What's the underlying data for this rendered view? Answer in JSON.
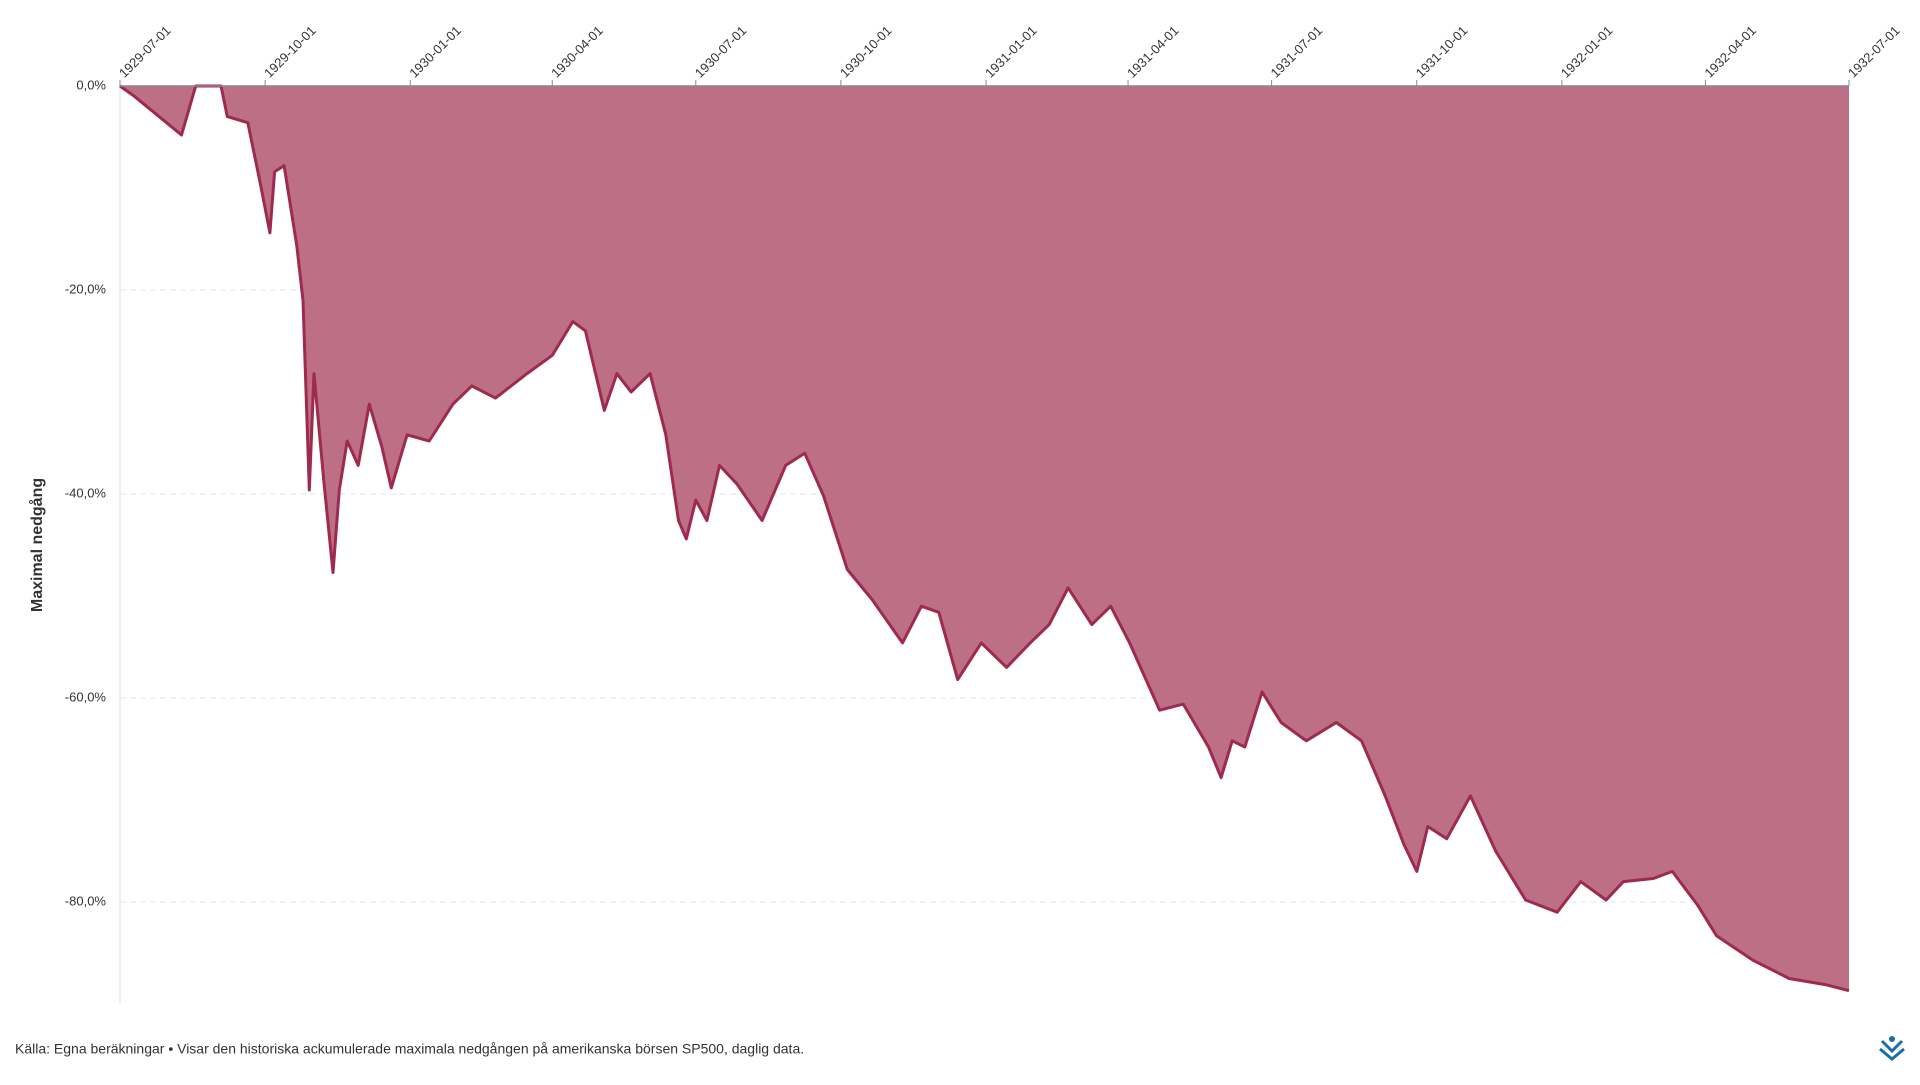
{
  "chart_data": {
    "type": "area",
    "ylabel": "Maximal nedgång",
    "source": "Källa: Egna beräkningar • Visar den historiska ackumulerade maximala nedgången på amerikanska börsen SP500, daglig data.",
    "color": "#bd6f85",
    "line_color": "#9e2a4e",
    "grid": true,
    "xlim": [
      "1929-07-01",
      "1932-07-01"
    ],
    "xticks": [
      "1929-07-01",
      "1929-10-01",
      "1930-01-01",
      "1930-04-01",
      "1930-07-01",
      "1930-10-01",
      "1931-01-01",
      "1931-04-01",
      "1931-07-01",
      "1931-10-01",
      "1932-01-01",
      "1932-04-01",
      "1932-07-01"
    ],
    "ylim": [
      -90,
      0
    ],
    "yticks": [
      {
        "value": 0,
        "label": "0,0%"
      },
      {
        "value": -20,
        "label": "-20,0%"
      },
      {
        "value": -40,
        "label": "-40,0%"
      },
      {
        "value": -60,
        "label": "-60,0%"
      },
      {
        "value": -80,
        "label": "-80,0%"
      }
    ],
    "x": [
      "1929-07-01",
      "1929-07-10",
      "1929-08-09",
      "1929-08-18",
      "1929-09-03",
      "1929-09-07",
      "1929-09-20",
      "1929-09-28",
      "1929-10-04",
      "1929-10-07",
      "1929-10-13",
      "1929-10-21",
      "1929-10-25",
      "1929-10-29",
      "1929-11-01",
      "1929-11-07",
      "1929-11-13",
      "1929-11-17",
      "1929-11-22",
      "1929-11-29",
      "1929-12-06",
      "1929-12-14",
      "1929-12-20",
      "1929-12-30",
      "1930-01-13",
      "1930-01-28",
      "1930-02-09",
      "1930-02-24",
      "1930-03-16",
      "1930-04-01",
      "1930-04-14",
      "1930-04-22",
      "1930-05-04",
      "1930-05-12",
      "1930-05-21",
      "1930-06-02",
      "1930-06-12",
      "1930-06-20",
      "1930-06-25",
      "1930-07-01",
      "1930-07-08",
      "1930-07-16",
      "1930-07-27",
      "1930-08-12",
      "1930-08-27",
      "1930-09-08",
      "1930-09-20",
      "1930-10-05",
      "1930-10-21",
      "1930-11-09",
      "1930-11-21",
      "1930-12-02",
      "1930-12-14",
      "1930-12-29",
      "1931-01-14",
      "1931-01-29",
      "1931-02-10",
      "1931-02-22",
      "1931-03-09",
      "1931-03-21",
      "1931-04-02",
      "1931-04-21",
      "1931-05-06",
      "1931-05-22",
      "1931-05-30",
      "1931-06-06",
      "1931-06-14",
      "1931-06-25",
      "1931-07-07",
      "1931-07-23",
      "1931-08-11",
      "1931-08-27",
      "1931-09-11",
      "1931-09-23",
      "1931-10-01",
      "1931-10-08",
      "1931-10-20",
      "1931-11-04",
      "1931-11-20",
      "1931-12-09",
      "1931-12-29",
      "1932-01-13",
      "1932-01-29",
      "1932-02-09",
      "1932-02-28",
      "1932-03-11",
      "1932-03-27",
      "1932-04-08",
      "1932-05-01",
      "1932-05-24",
      "1932-06-16",
      "1932-07-01"
    ],
    "values": [
      0,
      -1,
      -4.8,
      0,
      0,
      -3,
      -3.6,
      -9.6,
      -14.4,
      -8.4,
      -7.8,
      -15.6,
      -21,
      -39.6,
      -28.2,
      -38.4,
      -47.7,
      -39.6,
      -34.8,
      -37.2,
      -31.2,
      -35.4,
      -39.4,
      -34.2,
      -34.8,
      -31.2,
      -29.4,
      -30.6,
      -28.2,
      -26.4,
      -23.1,
      -24,
      -31.8,
      -28.2,
      -30,
      -28.2,
      -34.2,
      -42.6,
      -44.4,
      -40.6,
      -42.6,
      -37.2,
      -39,
      -42.6,
      -37.2,
      -36,
      -40.2,
      -47.4,
      -50.4,
      -54.6,
      -51,
      -51.6,
      -58.2,
      -54.6,
      -57,
      -54.6,
      -52.8,
      -49.2,
      -52.8,
      -51,
      -54.6,
      -61.2,
      -60.6,
      -64.8,
      -67.8,
      -64.2,
      -64.8,
      -59.4,
      -62.4,
      -64.2,
      -62.4,
      -64.2,
      -69.6,
      -74.4,
      -77,
      -72.6,
      -73.8,
      -69.6,
      -75,
      -79.8,
      -81,
      -78,
      -79.8,
      -78,
      -77.7,
      -77,
      -80.3,
      -83.3,
      -85.7,
      -87.5,
      -88.1,
      -88.7
    ]
  }
}
